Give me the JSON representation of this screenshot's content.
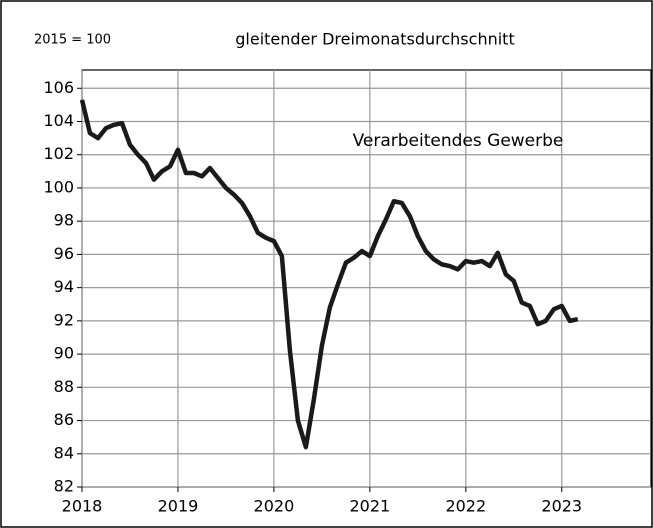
{
  "chart_data": {
    "type": "line",
    "title": "gleitender Dreimonatsdurchschnitt",
    "subtitle": "2015 = 100",
    "annotation": "Verarbeitendes Gewerbe",
    "x": [
      2018,
      2018.083,
      2018.167,
      2018.25,
      2018.333,
      2018.417,
      2018.5,
      2018.583,
      2018.667,
      2018.75,
      2018.833,
      2018.917,
      2019,
      2019.083,
      2019.167,
      2019.25,
      2019.333,
      2019.417,
      2019.5,
      2019.583,
      2019.667,
      2019.75,
      2019.833,
      2019.917,
      2020,
      2020.083,
      2020.167,
      2020.25,
      2020.333,
      2020.417,
      2020.5,
      2020.583,
      2020.667,
      2020.75,
      2020.833,
      2020.917,
      2021,
      2021.083,
      2021.167,
      2021.25,
      2021.333,
      2021.417,
      2021.5,
      2021.583,
      2021.667,
      2021.75,
      2021.833,
      2021.917,
      2022,
      2022.083,
      2022.167,
      2022.25,
      2022.333,
      2022.417,
      2022.5,
      2022.583,
      2022.667,
      2022.75,
      2022.833,
      2022.917,
      2023,
      2023.083,
      2023.167
    ],
    "series": [
      {
        "name": "Verarbeitendes Gewerbe",
        "color": "#1a1a1a",
        "values": [
          105.3,
          103.3,
          103.0,
          103.6,
          103.8,
          103.9,
          102.6,
          102.0,
          101.5,
          100.5,
          101.0,
          101.3,
          102.3,
          100.9,
          100.9,
          100.7,
          101.2,
          100.6,
          100.0,
          99.6,
          99.1,
          98.3,
          97.3,
          97.0,
          96.8,
          95.9,
          90.2,
          86.0,
          84.4,
          87.3,
          90.5,
          92.8,
          94.2,
          95.5,
          95.8,
          96.2,
          95.9,
          97.1,
          98.1,
          99.2,
          99.1,
          98.3,
          97.1,
          96.2,
          95.7,
          95.4,
          95.3,
          95.1,
          95.6,
          95.5,
          95.6,
          95.3,
          96.1,
          94.8,
          94.4,
          93.1,
          92.9,
          91.8,
          92.0,
          92.7,
          92.9,
          92.0,
          92.1
        ]
      }
    ],
    "xlim": [
      2018,
      2023.93
    ],
    "ylim": [
      82,
      107.1
    ],
    "xticks": [
      2018,
      2019,
      2020,
      2021,
      2022,
      2023
    ],
    "yticks": [
      82,
      84,
      86,
      88,
      90,
      92,
      94,
      96,
      98,
      100,
      102,
      104,
      106
    ],
    "grid": true
  }
}
